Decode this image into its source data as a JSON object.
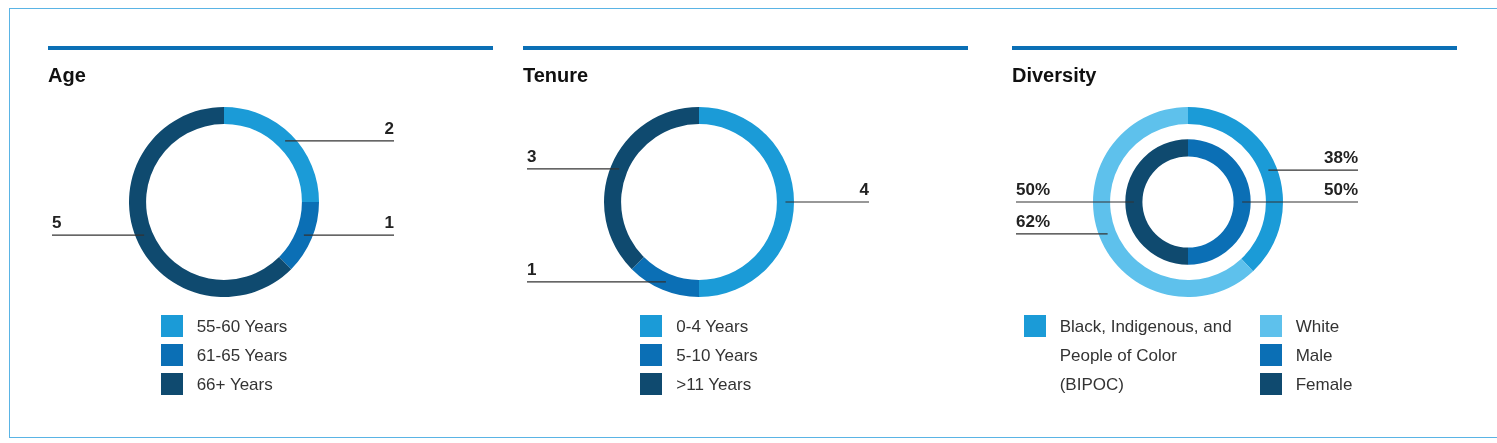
{
  "chart_data": [
    {
      "type": "donut",
      "title": "Age",
      "categories": [
        "55-60 Years",
        "61-65 Years",
        "66+ Years"
      ],
      "values": [
        2,
        1,
        5
      ],
      "colors": [
        "#1b9bd7",
        "#0b6fb5",
        "#0f4a6f"
      ],
      "data_labels": true,
      "legend": "bottom"
    },
    {
      "type": "donut",
      "title": "Tenure",
      "categories": [
        "0-4 Years",
        "5-10 Years",
        ">11 Years"
      ],
      "values": [
        4,
        1,
        3
      ],
      "colors": [
        "#1b9bd7",
        "#0b6fb5",
        "#0f4a6f"
      ],
      "data_labels": true,
      "legend": "bottom"
    },
    {
      "type": "donut",
      "title": "Diversity",
      "categories": [
        "Black, Indigenous, and People of Color (BIPOC)",
        "White",
        "Male",
        "Female"
      ],
      "colors": [
        "#1b9bd7",
        "#5ec1ec",
        "#0b6fb5",
        "#0f4a6f"
      ],
      "legend": "bottom",
      "series": [
        {
          "values": [
            38,
            62,
            null,
            null
          ],
          "value_labels": [
            "38%",
            "62%",
            null,
            null
          ]
        },
        {
          "values": [
            null,
            null,
            50,
            50
          ],
          "value_labels": [
            null,
            null,
            "50%",
            "50%"
          ]
        }
      ]
    }
  ]
}
